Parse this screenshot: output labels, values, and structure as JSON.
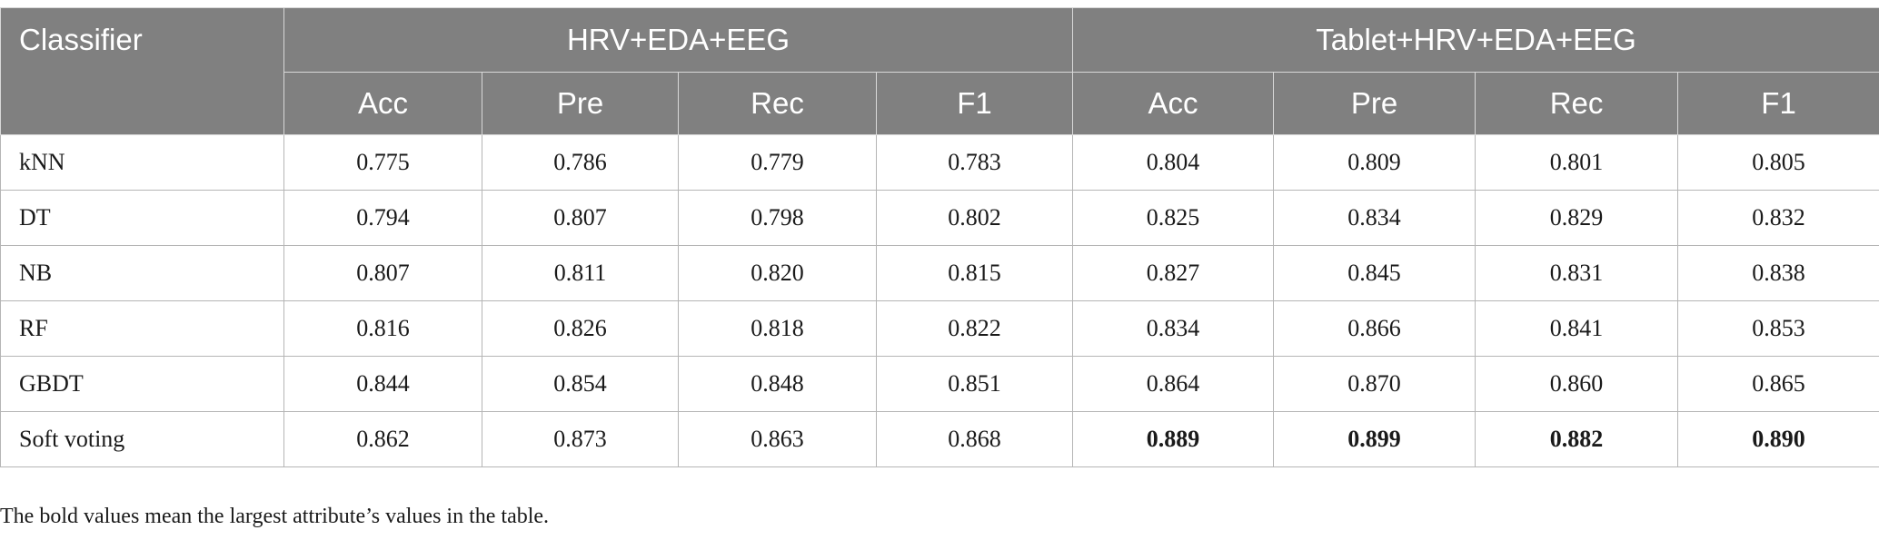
{
  "table": {
    "corner_label": "Classifier",
    "groups": [
      "HRV+EDA+EEG",
      "Tablet+HRV+EDA+EEG"
    ],
    "metrics": [
      "Acc",
      "Pre",
      "Rec",
      "F1",
      "Acc",
      "Pre",
      "Rec",
      "F1"
    ],
    "rows": [
      {
        "label": "kNN",
        "values": [
          "0.775",
          "0.786",
          "0.779",
          "0.783",
          "0.804",
          "0.809",
          "0.801",
          "0.805"
        ]
      },
      {
        "label": "DT",
        "values": [
          "0.794",
          "0.807",
          "0.798",
          "0.802",
          "0.825",
          "0.834",
          "0.829",
          "0.832"
        ]
      },
      {
        "label": "NB",
        "values": [
          "0.807",
          "0.811",
          "0.820",
          "0.815",
          "0.827",
          "0.845",
          "0.831",
          "0.838"
        ]
      },
      {
        "label": "RF",
        "values": [
          "0.816",
          "0.826",
          "0.818",
          "0.822",
          "0.834",
          "0.866",
          "0.841",
          "0.853"
        ]
      },
      {
        "label": "GBDT",
        "values": [
          "0.844",
          "0.854",
          "0.848",
          "0.851",
          "0.864",
          "0.870",
          "0.860",
          "0.865"
        ]
      },
      {
        "label": "Soft voting",
        "values": [
          "0.862",
          "0.873",
          "0.863",
          "0.868",
          "0.889",
          "0.899",
          "0.882",
          "0.890"
        ]
      }
    ]
  },
  "footnote": "The bold values mean the largest attribute’s values in the table."
}
